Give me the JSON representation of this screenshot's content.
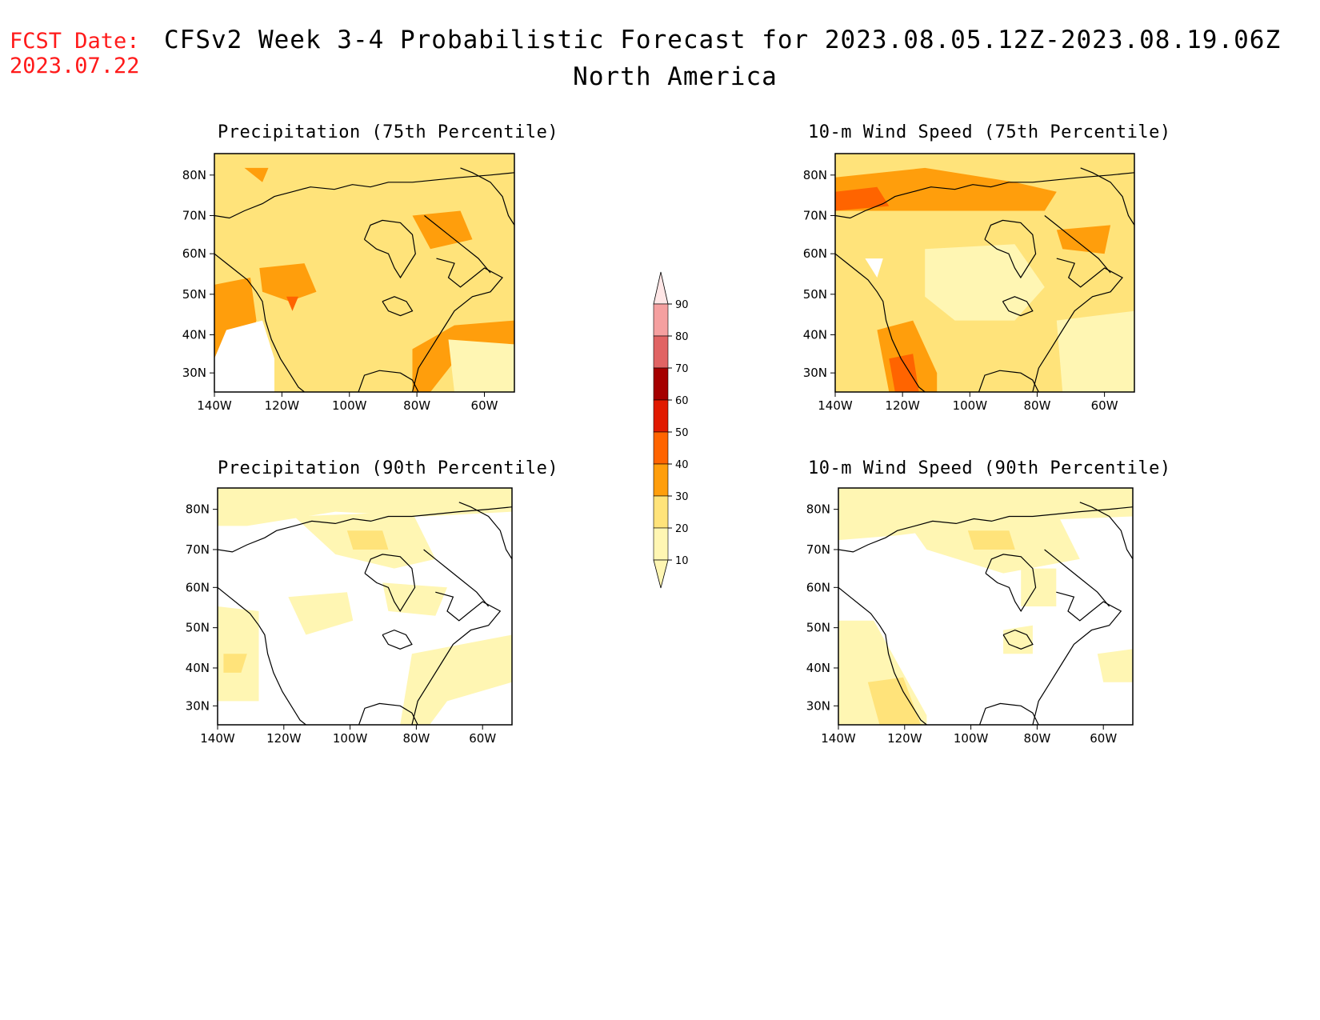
{
  "header": {
    "fcst_label": "FCST Date:",
    "fcst_date": "2023.07.22",
    "title": "CFSv2 Week 3-4 Probabilistic Forecast for 2023.08.05.12Z-2023.08.19.06Z",
    "region": "North America"
  },
  "colors": {
    "c10": "#fff6b3",
    "c20": "#ffe37a",
    "c30": "#ff9e0c",
    "c40": "#ff6400",
    "c50": "#e11a00",
    "c60": "#a50000",
    "c70": "#e16464",
    "c80": "#f5a0a0",
    "c90": "#ffe6e6"
  },
  "colorbar": {
    "levels": [
      "10",
      "20",
      "30",
      "40",
      "50",
      "60",
      "70",
      "80",
      "90"
    ]
  },
  "axes": {
    "lon_ticks": [
      "140W",
      "120W",
      "100W",
      "80W",
      "60W"
    ],
    "lat_ticks": [
      "80N",
      "70N",
      "60N",
      "50N",
      "40N",
      "30N"
    ]
  },
  "panels": [
    {
      "id": "precip75",
      "title": "Precipitation (75th Percentile)",
      "base": "c20"
    },
    {
      "id": "wind75",
      "title": "10-m Wind Speed (75th Percentile)",
      "base": "c20"
    },
    {
      "id": "precip90",
      "title": "Precipitation (90th Percentile)",
      "base": "none"
    },
    {
      "id": "wind90",
      "title": "10-m Wind Speed (90th Percentile)",
      "base": "none"
    }
  ]
}
